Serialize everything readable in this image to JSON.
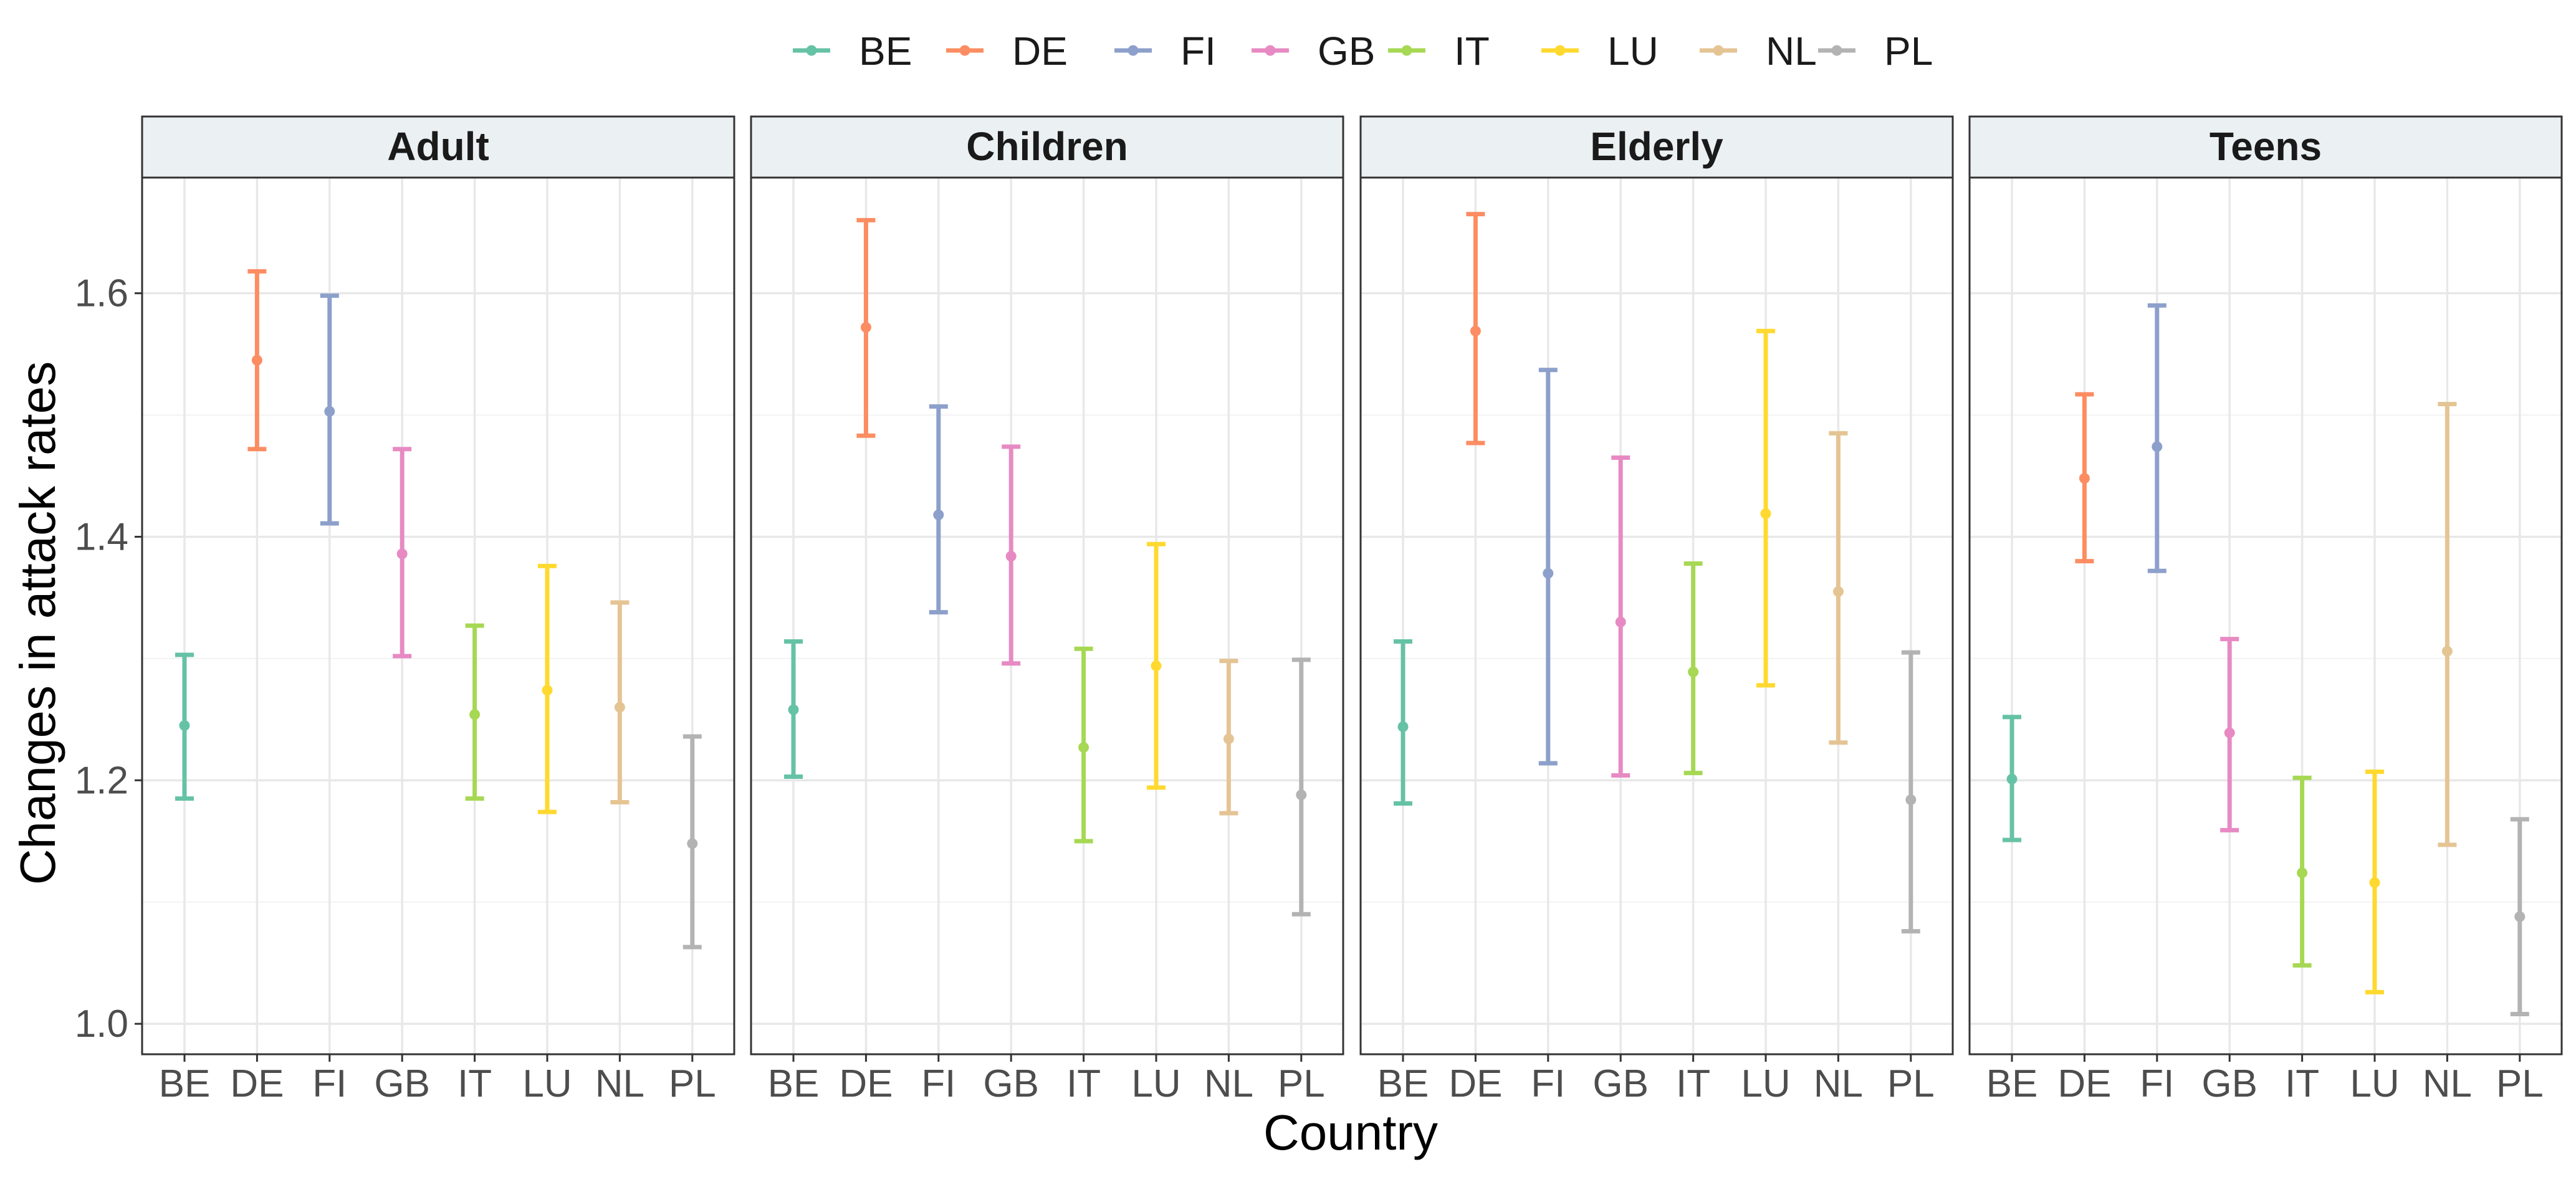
{
  "chart_data": {
    "type": "errorbar",
    "xlabel": "Country",
    "ylabel": "Changes in attack rates",
    "ylim": [
      0.975,
      1.695
    ],
    "y_ticks": [
      "1.0",
      "1.2",
      "1.4",
      "1.6"
    ],
    "countries": [
      "BE",
      "DE",
      "FI",
      "GB",
      "IT",
      "LU",
      "NL",
      "PL"
    ],
    "colors": {
      "BE": "#66c2a5",
      "DE": "#fc8d62",
      "FI": "#8da0cb",
      "GB": "#e78ac3",
      "IT": "#a6d854",
      "LU": "#ffd92f",
      "NL": "#e5c494",
      "PL": "#b3b3b3"
    },
    "legend_position": "top",
    "grid": true,
    "panels": [
      {
        "title": "Adult",
        "points": [
          {
            "x": "BE",
            "y": 1.245,
            "lo": 1.185,
            "hi": 1.303
          },
          {
            "x": "DE",
            "y": 1.545,
            "lo": 1.472,
            "hi": 1.618
          },
          {
            "x": "FI",
            "y": 1.503,
            "lo": 1.411,
            "hi": 1.598
          },
          {
            "x": "GB",
            "y": 1.386,
            "lo": 1.302,
            "hi": 1.472
          },
          {
            "x": "IT",
            "y": 1.254,
            "lo": 1.185,
            "hi": 1.327
          },
          {
            "x": "LU",
            "y": 1.274,
            "lo": 1.174,
            "hi": 1.376
          },
          {
            "x": "NL",
            "y": 1.26,
            "lo": 1.182,
            "hi": 1.346
          },
          {
            "x": "PL",
            "y": 1.148,
            "lo": 1.063,
            "hi": 1.236
          }
        ]
      },
      {
        "title": "Children",
        "points": [
          {
            "x": "BE",
            "y": 1.258,
            "lo": 1.203,
            "hi": 1.314
          },
          {
            "x": "DE",
            "y": 1.572,
            "lo": 1.483,
            "hi": 1.66
          },
          {
            "x": "FI",
            "y": 1.418,
            "lo": 1.338,
            "hi": 1.507
          },
          {
            "x": "GB",
            "y": 1.384,
            "lo": 1.296,
            "hi": 1.474
          },
          {
            "x": "IT",
            "y": 1.227,
            "lo": 1.15,
            "hi": 1.308
          },
          {
            "x": "LU",
            "y": 1.294,
            "lo": 1.194,
            "hi": 1.394
          },
          {
            "x": "NL",
            "y": 1.234,
            "lo": 1.173,
            "hi": 1.298
          },
          {
            "x": "PL",
            "y": 1.188,
            "lo": 1.09,
            "hi": 1.299
          }
        ]
      },
      {
        "title": "Elderly",
        "points": [
          {
            "x": "BE",
            "y": 1.244,
            "lo": 1.181,
            "hi": 1.314
          },
          {
            "x": "DE",
            "y": 1.569,
            "lo": 1.477,
            "hi": 1.665
          },
          {
            "x": "FI",
            "y": 1.37,
            "lo": 1.214,
            "hi": 1.537
          },
          {
            "x": "GB",
            "y": 1.33,
            "lo": 1.204,
            "hi": 1.465
          },
          {
            "x": "IT",
            "y": 1.289,
            "lo": 1.206,
            "hi": 1.378
          },
          {
            "x": "LU",
            "y": 1.419,
            "lo": 1.278,
            "hi": 1.569
          },
          {
            "x": "NL",
            "y": 1.355,
            "lo": 1.231,
            "hi": 1.485
          },
          {
            "x": "PL",
            "y": 1.184,
            "lo": 1.076,
            "hi": 1.305
          }
        ]
      },
      {
        "title": "Teens",
        "points": [
          {
            "x": "BE",
            "y": 1.201,
            "lo": 1.151,
            "hi": 1.252
          },
          {
            "x": "DE",
            "y": 1.448,
            "lo": 1.38,
            "hi": 1.517
          },
          {
            "x": "FI",
            "y": 1.474,
            "lo": 1.372,
            "hi": 1.59
          },
          {
            "x": "GB",
            "y": 1.239,
            "lo": 1.159,
            "hi": 1.316
          },
          {
            "x": "IT",
            "y": 1.124,
            "lo": 1.048,
            "hi": 1.202
          },
          {
            "x": "LU",
            "y": 1.116,
            "lo": 1.026,
            "hi": 1.207
          },
          {
            "x": "NL",
            "y": 1.306,
            "lo": 1.147,
            "hi": 1.509
          },
          {
            "x": "PL",
            "y": 1.088,
            "lo": 1.008,
            "hi": 1.168
          }
        ]
      }
    ]
  }
}
